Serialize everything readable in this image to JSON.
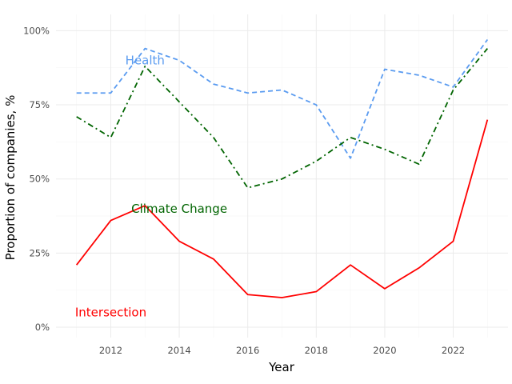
{
  "chart_data": {
    "type": "line",
    "title": "",
    "xlabel": "Year",
    "ylabel": "Proportion of companies, %",
    "x": [
      2011,
      2012,
      2013,
      2014,
      2015,
      2016,
      2017,
      2018,
      2019,
      2020,
      2021,
      2022,
      2023
    ],
    "xlim": [
      2010.4,
      2023.6
    ],
    "ylim": [
      -3.5,
      105.5
    ],
    "x_ticks": [
      2012,
      2014,
      2016,
      2018,
      2020,
      2022
    ],
    "x_tick_labels": [
      "2012",
      "2014",
      "2016",
      "2018",
      "2020",
      "2022"
    ],
    "y_ticks": [
      0,
      25,
      50,
      75,
      100
    ],
    "y_tick_labels": [
      "0%",
      "25%",
      "50%",
      "75%",
      "100%"
    ],
    "grid": true,
    "series": [
      {
        "name": "Health",
        "label": "Health",
        "color": "#5a9bf0",
        "dash": "dashed",
        "values": [
          79,
          79,
          94,
          90,
          82,
          79,
          80,
          75,
          57,
          87,
          85,
          81,
          97
        ],
        "label_anchor": {
          "x": 2013,
          "y": 90
        }
      },
      {
        "name": "Climate Change",
        "label": "Climate Change",
        "color": "#006400",
        "dash": "dashdot",
        "values": [
          71,
          64,
          88,
          76,
          64,
          47,
          50,
          56,
          64,
          60,
          55,
          80,
          94
        ],
        "label_anchor": {
          "x": 2014,
          "y": 40
        }
      },
      {
        "name": "Intersection",
        "label": "Intersection",
        "color": "#ff0000",
        "dash": "solid",
        "values": [
          21,
          36,
          41,
          29,
          23,
          11,
          10,
          12,
          21,
          13,
          20,
          29,
          70
        ],
        "label_anchor": {
          "x": 2012,
          "y": 5
        }
      }
    ]
  }
}
